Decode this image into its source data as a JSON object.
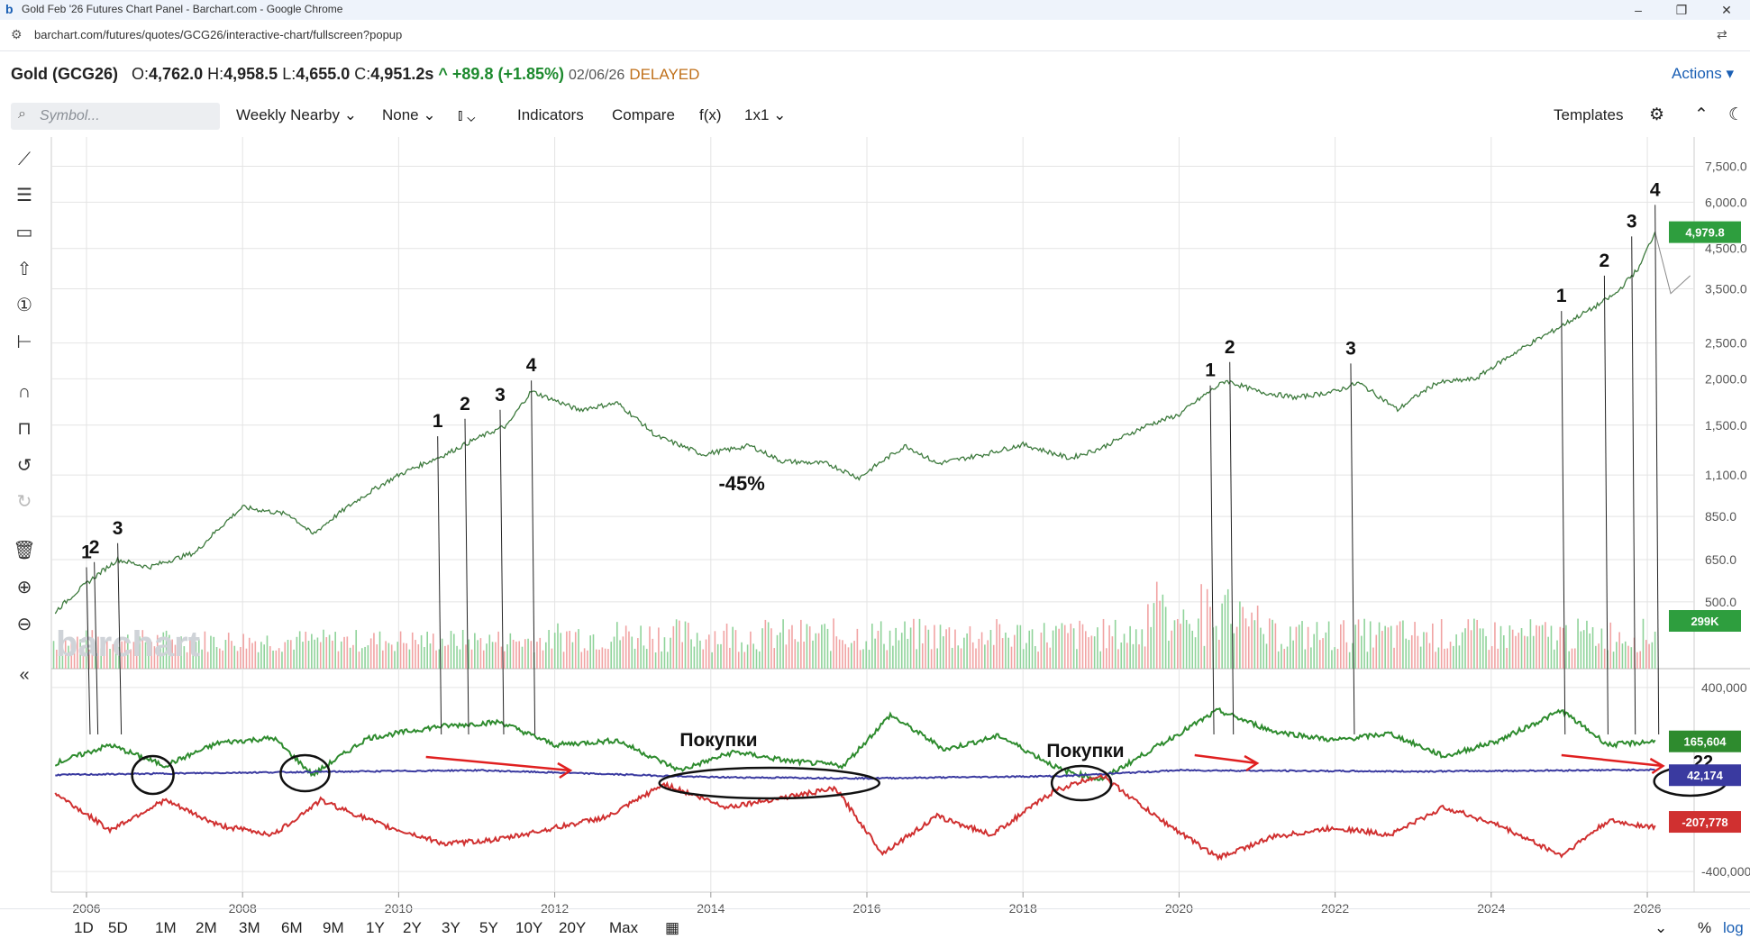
{
  "window": {
    "title": "Gold Feb '26 Futures Chart Panel - Barchart.com - Google Chrome",
    "url": "barchart.com/futures/quotes/GCG26/interactive-chart/fullscreen?popup",
    "controls": [
      "–",
      "❐",
      "✕"
    ]
  },
  "quote": {
    "symbol": "Gold (GCG26)",
    "open_label": "O:",
    "open": "4,762.0",
    "high_label": "H:",
    "high": "4,958.5",
    "low_label": "L:",
    "low": "4,655.0",
    "close_label": "C:",
    "close": "4,951.2s",
    "change": "^ +89.8 (+1.85%)",
    "date": "02/06/26",
    "status": "DELAYED",
    "actions": "Actions ▾"
  },
  "toolbar": {
    "symbol_placeholder": "Symbol...",
    "interval": "Weekly Nearby",
    "overlay": "None",
    "indicators": "Indicators",
    "compare": "Compare",
    "fx": "f(x)",
    "layout": "1x1",
    "templates": "Templates"
  },
  "periods": [
    "1D",
    "5D",
    "1M",
    "2M",
    "3M",
    "6M",
    "9M",
    "1Y",
    "2Y",
    "3Y",
    "5Y",
    "10Y",
    "20Y",
    "Max"
  ],
  "scale": {
    "percent": "%",
    "log": "log"
  },
  "watermark": "barchart",
  "colors": {
    "price": "#3d7a3d",
    "volume_up": "#8fd39a",
    "volume_down": "#f1a3a3",
    "commercials": "#d03030",
    "large_spec": "#2e8b2e",
    "small_spec": "#3a3aa0",
    "annotation_arrow": "#e02020",
    "accent": "#1a5fb4"
  },
  "chart_data": {
    "type": "line",
    "x_axis_labels": [
      "2006",
      "2008",
      "2010",
      "2012",
      "2014",
      "2016",
      "2018",
      "2020",
      "2022",
      "2024",
      "2026"
    ],
    "price_axis_labels": [
      "7,500.0",
      "6,000.0",
      "4,500.0",
      "3,500.0",
      "2,500.0",
      "2,000.0",
      "1,500.0",
      "1,100.0",
      "850.0",
      "650.0",
      "500.0"
    ],
    "price_scale": "log",
    "cot_axis_labels": [
      "400,000",
      "-400,000"
    ],
    "last_price": "4,979.8",
    "last_volume": "299K",
    "cot_last": {
      "large_spec": "165,604",
      "small_spec": "42,174",
      "commercials": "-207,778"
    },
    "price_series": {
      "x": [
        2005.6,
        2006.0,
        2006.4,
        2006.8,
        2007.4,
        2008.0,
        2008.6,
        2008.9,
        2009.5,
        2010.0,
        2010.6,
        2011.0,
        2011.4,
        2011.7,
        2012.3,
        2012.8,
        2013.3,
        2013.9,
        2014.5,
        2014.9,
        2015.5,
        2015.9,
        2016.5,
        2016.9,
        2017.5,
        2018.0,
        2018.6,
        2019.0,
        2019.6,
        2020.0,
        2020.6,
        2021.0,
        2021.5,
        2022.0,
        2022.3,
        2022.8,
        2023.3,
        2023.8,
        2024.3,
        2024.8,
        2025.3,
        2025.6,
        2025.9,
        2026.1
      ],
      "y": [
        470,
        560,
        650,
        620,
        680,
        900,
        860,
        760,
        950,
        1100,
        1250,
        1380,
        1500,
        1850,
        1650,
        1720,
        1400,
        1250,
        1320,
        1200,
        1180,
        1080,
        1320,
        1180,
        1250,
        1330,
        1220,
        1300,
        1500,
        1600,
        1980,
        1850,
        1780,
        1850,
        1950,
        1650,
        1950,
        2000,
        2350,
        2700,
        3100,
        3400,
        4000,
        4979.8
      ]
    },
    "cot_series": [
      {
        "color": "#2e8b2e",
        "x": [
          2005.6,
          2006.3,
          2007.0,
          2007.7,
          2008.4,
          2008.9,
          2009.6,
          2010.5,
          2011.3,
          2012.0,
          2012.8,
          2013.6,
          2014.3,
          2015.0,
          2015.7,
          2016.3,
          2017.0,
          2017.7,
          2018.5,
          2019.0,
          2019.7,
          2020.5,
          2021.2,
          2022.0,
          2022.7,
          2023.4,
          2024.1,
          2024.9,
          2025.5,
          2026.1
        ],
        "y": [
          70000,
          150000,
          60000,
          160000,
          180000,
          20000,
          180000,
          230000,
          250000,
          150000,
          170000,
          40000,
          120000,
          80000,
          60000,
          280000,
          130000,
          190000,
          40000,
          0,
          140000,
          300000,
          210000,
          170000,
          200000,
          100000,
          170000,
          300000,
          150000,
          165604
        ]
      },
      {
        "color": "#3a3aa0",
        "x": [
          2005.6,
          2008.0,
          2011.0,
          2014.0,
          2016.0,
          2018.5,
          2020.0,
          2023.0,
          2026.1
        ],
        "y": [
          20000,
          30000,
          40000,
          10000,
          5000,
          15000,
          40000,
          35000,
          42174
        ]
      },
      {
        "color": "#d03030",
        "x": [
          2005.6,
          2006.3,
          2007.0,
          2007.7,
          2008.4,
          2009.0,
          2009.8,
          2010.6,
          2011.3,
          2012.0,
          2012.7,
          2013.4,
          2014.2,
          2014.9,
          2015.6,
          2016.2,
          2016.9,
          2017.6,
          2018.4,
          2019.0,
          2019.7,
          2020.5,
          2021.2,
          2022.0,
          2022.7,
          2023.4,
          2024.1,
          2024.9,
          2025.5,
          2026.1
        ],
        "y": [
          -60000,
          -220000,
          -90000,
          -200000,
          -240000,
          -90000,
          -200000,
          -280000,
          -260000,
          -210000,
          -160000,
          -20000,
          -120000,
          -80000,
          -40000,
          -320000,
          -160000,
          -240000,
          -50000,
          20000,
          -160000,
          -340000,
          -250000,
          -210000,
          -240000,
          -120000,
          -200000,
          -330000,
          -180000,
          -207778
        ]
      }
    ]
  },
  "annotations": {
    "wave_labels": [
      "1",
      "2",
      "3",
      "4"
    ],
    "drop_label": "-45%",
    "buy_label": "Покупки",
    "misc_label": "22"
  }
}
